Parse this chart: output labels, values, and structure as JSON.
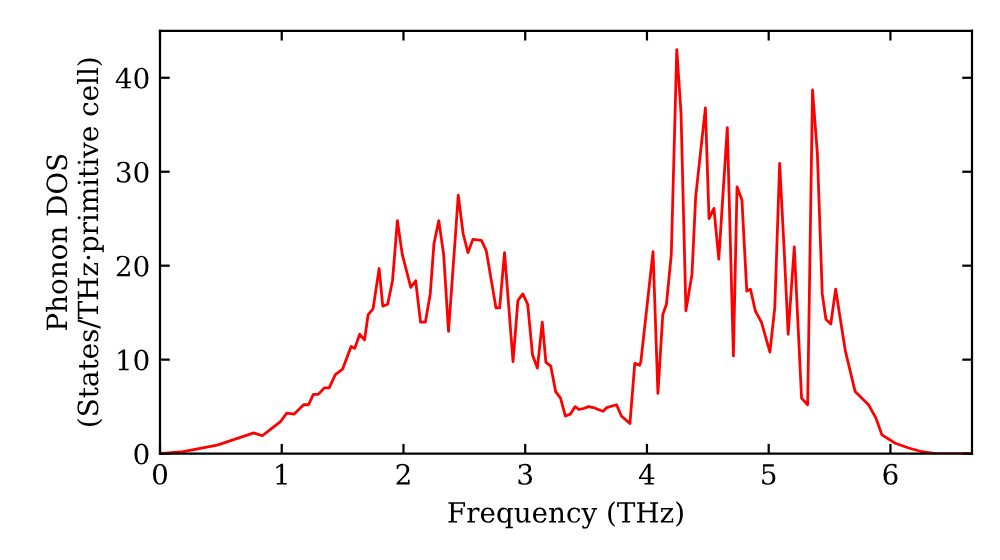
{
  "chart_data": {
    "type": "line",
    "xlabel": "Frequency (THz)",
    "ylabel": "Phonon DOS\n(States/THz·primitive cell)",
    "xlim": [
      0,
      6.67
    ],
    "ylim": [
      0,
      45
    ],
    "xticks": [
      0,
      1,
      2,
      3,
      4,
      5,
      6
    ],
    "yticks": [
      0,
      10,
      20,
      30,
      40
    ],
    "grid": false,
    "marker": "none",
    "line_style": "solid",
    "x": [
      0,
      0.19,
      0.47,
      0.63,
      0.77,
      0.84,
      0.91,
      0.99,
      1.04,
      1.1,
      1.18,
      1.22,
      1.26,
      1.3,
      1.35,
      1.39,
      1.44,
      1.5,
      1.57,
      1.6,
      1.64,
      1.68,
      1.71,
      1.75,
      1.8,
      1.83,
      1.87,
      1.91,
      1.95,
      1.99,
      2.06,
      2.1,
      2.14,
      2.18,
      2.22,
      2.25,
      2.29,
      2.33,
      2.37,
      2.42,
      2.45,
      2.49,
      2.53,
      2.57,
      2.64,
      2.68,
      2.76,
      2.79,
      2.83,
      2.9,
      2.94,
      2.98,
      3.02,
      3.06,
      3.1,
      3.14,
      3.17,
      3.21,
      3.25,
      3.29,
      3.33,
      3.37,
      3.41,
      3.44,
      3.48,
      3.52,
      3.56,
      3.6,
      3.64,
      3.67,
      3.75,
      3.79,
      3.86,
      3.9,
      3.94,
      3.95,
      4.05,
      4.09,
      4.13,
      4.16,
      4.2,
      4.245,
      4.28,
      4.32,
      4.37,
      4.4,
      4.48,
      4.51,
      4.55,
      4.59,
      4.66,
      4.71,
      4.74,
      4.78,
      4.82,
      4.85,
      4.89,
      4.94,
      5.01,
      5.05,
      5.09,
      5.13,
      5.16,
      5.21,
      5.27,
      5.32,
      5.36,
      5.4,
      5.44,
      5.47,
      5.51,
      5.55,
      5.63,
      5.71,
      5.82,
      5.88,
      5.93,
      6.04,
      6.15,
      6.26,
      6.37,
      6.67
    ],
    "series": [
      {
        "color": "#ff0000",
        "values": [
          0,
          0.2,
          0.9,
          1.6,
          2.2,
          1.9,
          2.6,
          3.4,
          4.3,
          4.2,
          5.2,
          5.2,
          6.3,
          6.3,
          7.0,
          7.0,
          8.4,
          9.0,
          11.4,
          11.2,
          12.7,
          12.1,
          14.8,
          15.4,
          19.7,
          15.7,
          15.9,
          18.4,
          24.8,
          21.2,
          17.7,
          18.4,
          14.0,
          14.0,
          17.0,
          22.3,
          24.8,
          21.2,
          13.0,
          22.0,
          27.5,
          23.4,
          21.4,
          22.8,
          22.7,
          21.6,
          15.5,
          15.5,
          21.4,
          9.8,
          16.3,
          17.0,
          15.9,
          10.5,
          9.1,
          14.0,
          9.7,
          9.3,
          6.6,
          5.9,
          4.0,
          4.2,
          5.0,
          4.7,
          4.8,
          5.0,
          4.9,
          4.7,
          4.5,
          4.9,
          5.2,
          4.0,
          3.2,
          9.6,
          9.4,
          9.8,
          21.5,
          6.4,
          14.8,
          15.9,
          21.2,
          43.0,
          36.2,
          15.2,
          19.1,
          27.3,
          36.8,
          25.0,
          26.1,
          20.7,
          34.7,
          10.4,
          28.4,
          27.0,
          17.3,
          17.5,
          15.2,
          14.0,
          10.8,
          15.5,
          30.9,
          20.9,
          12.7,
          22.0,
          5.9,
          5.2,
          38.7,
          31.9,
          17.0,
          14.3,
          13.8,
          17.5,
          10.9,
          6.6,
          5.2,
          3.8,
          2.0,
          1.1,
          0.6,
          0.2,
          0,
          0
        ]
      }
    ]
  }
}
